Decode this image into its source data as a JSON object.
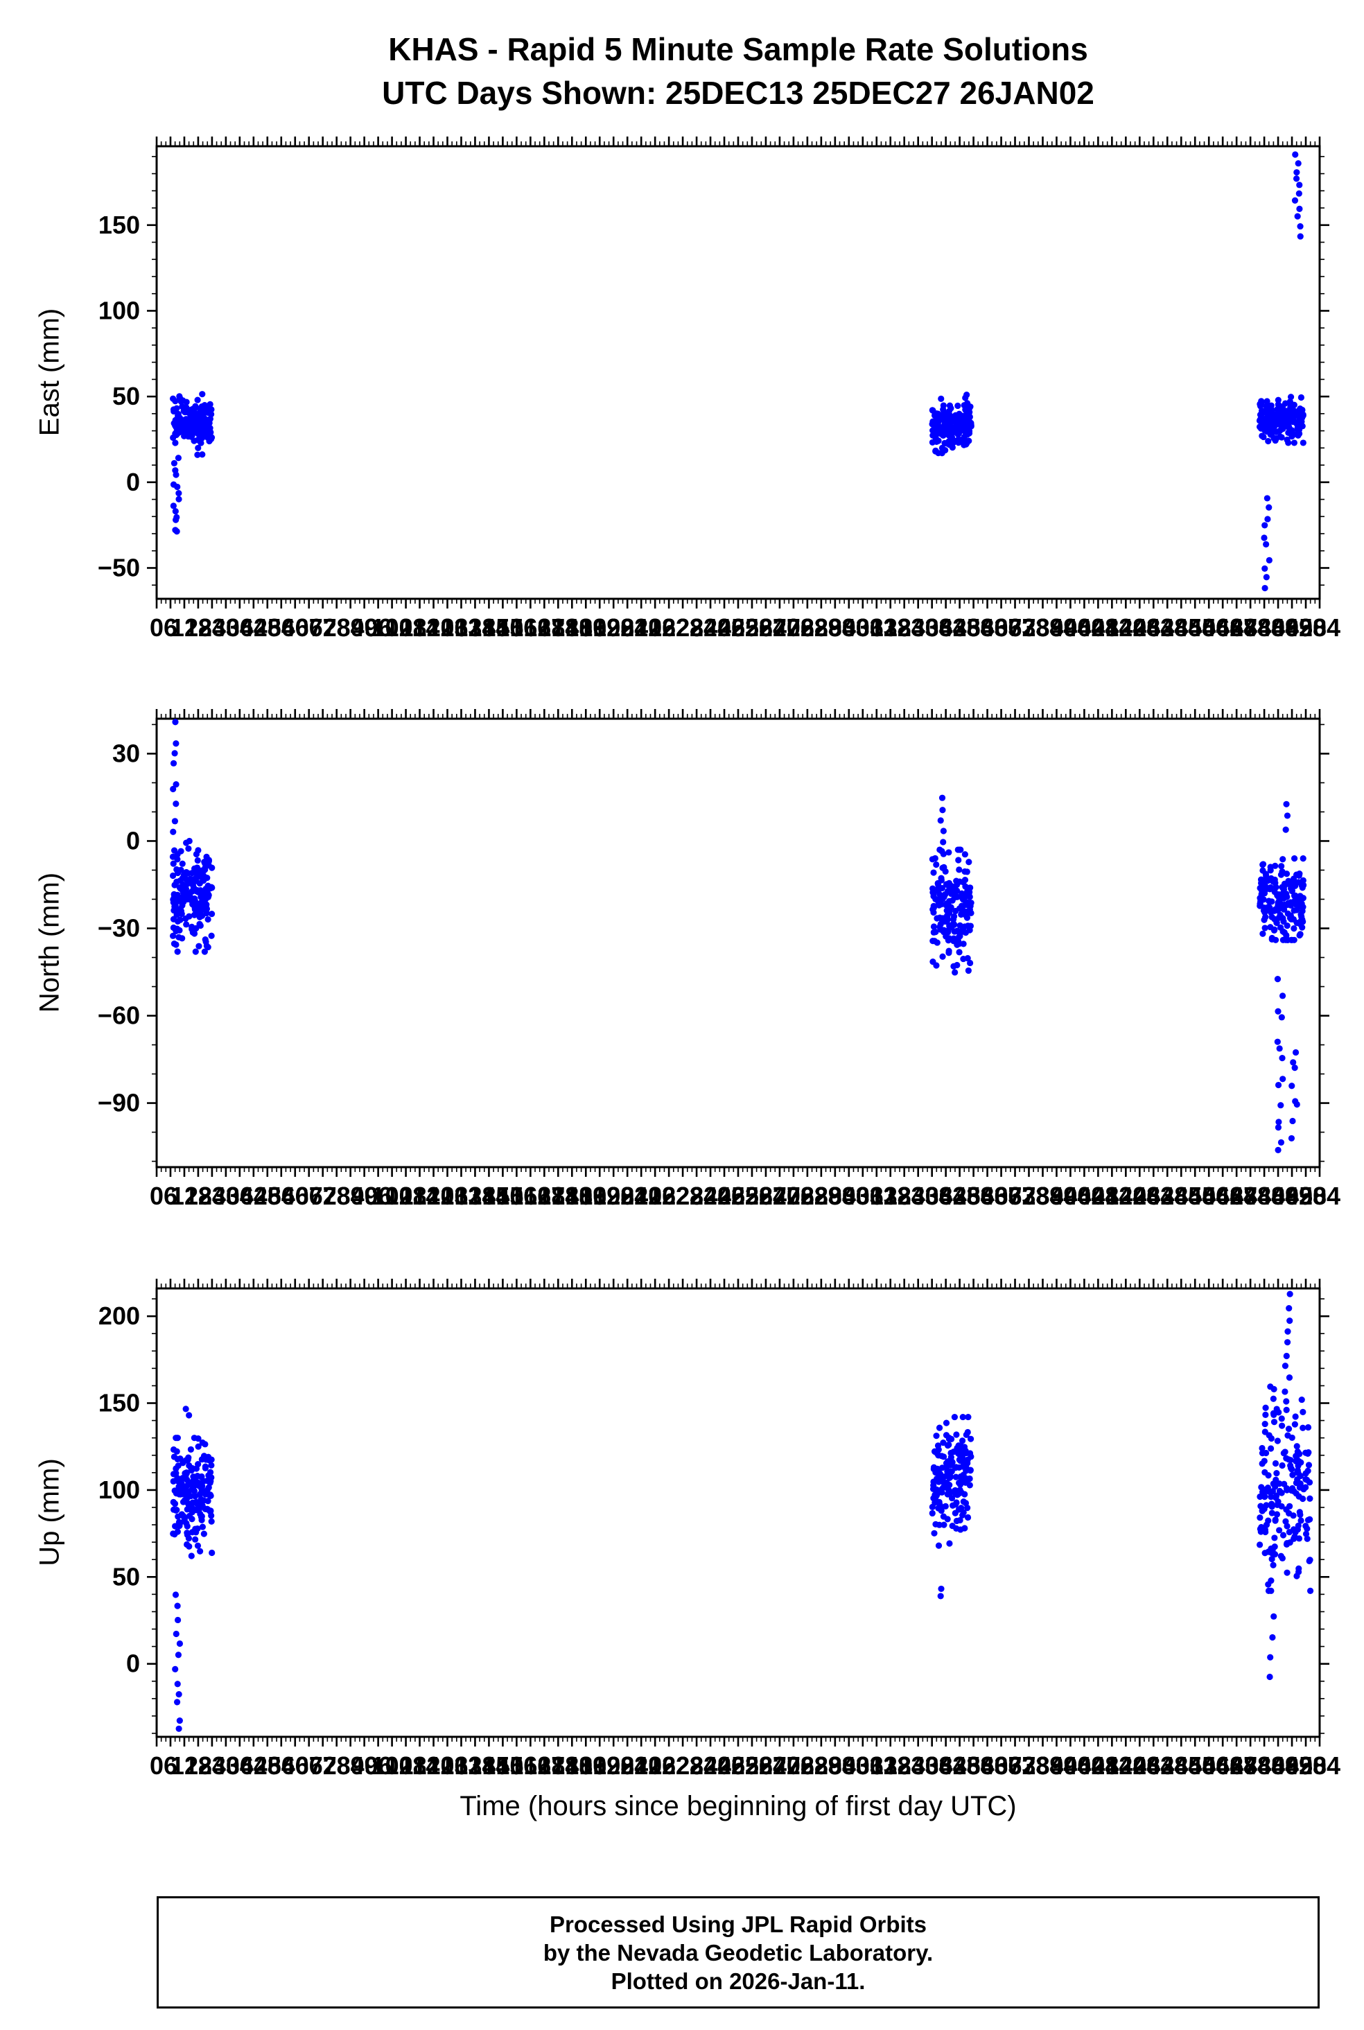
{
  "title": {
    "line1": "KHAS - Rapid 5 Minute Sample Rate Solutions",
    "line2": "UTC Days Shown:  25DEC13 25DEC27 26JAN02"
  },
  "xlabel": "Time (hours since beginning of first day UTC)",
  "footer": {
    "line1": "Processed Using JPL Rapid Orbits",
    "line2": "by the Nevada Geodetic Laboratory.",
    "line3": "Plotted on 2026-Jan-11."
  },
  "style": {
    "marker_color": "#0000ff",
    "frame_color": "#000000",
    "background": "#ffffff"
  },
  "chart_data": [
    {
      "type": "scatter",
      "name": "east",
      "ylabel": "East (mm)",
      "xlim": [
        0,
        504
      ],
      "ylim": [
        -68,
        196
      ],
      "yticks": [
        -50,
        0,
        50,
        100,
        150
      ],
      "ytick_minor_step": 10,
      "xtick_step": 6,
      "xtick_minor_step": 2,
      "seed": 11,
      "clusters": [
        {
          "x0": 7,
          "x1": 24,
          "n": 180,
          "mean": 34,
          "sd": 6,
          "ymin": 16,
          "ymax": 52
        },
        {
          "x0": 336,
          "x1": 353,
          "n": 180,
          "mean": 33,
          "sd": 7,
          "ymin": 17,
          "ymax": 51
        },
        {
          "x0": 478,
          "x1": 497,
          "n": 170,
          "mean": 36,
          "sd": 6,
          "ymin": 23,
          "ymax": 56
        }
      ],
      "columns": [
        {
          "x": 8.5,
          "n": 14,
          "y0": -30,
          "y1": 14
        },
        {
          "x": 481,
          "n": 10,
          "y0": -62,
          "y1": -8
        },
        {
          "x": 494.5,
          "n": 11,
          "y0": 145,
          "y1": 190
        }
      ]
    },
    {
      "type": "scatter",
      "name": "north",
      "ylabel": "North (mm)",
      "xlim": [
        0,
        504
      ],
      "ylim": [
        -112,
        42
      ],
      "yticks": [
        -90,
        -60,
        -30,
        0,
        30
      ],
      "ytick_minor_step": 10,
      "xtick_step": 6,
      "xtick_minor_step": 2,
      "seed": 22,
      "clusters": [
        {
          "x0": 7,
          "x1": 24,
          "n": 180,
          "mean": -19,
          "sd": 8,
          "ymin": -38,
          "ymax": 0
        },
        {
          "x0": 336,
          "x1": 353,
          "n": 180,
          "mean": -22,
          "sd": 9,
          "ymin": -46,
          "ymax": -3
        },
        {
          "x0": 478,
          "x1": 497,
          "n": 170,
          "mean": -20,
          "sd": 7,
          "ymin": -34,
          "ymax": -6
        }
      ],
      "columns": [
        {
          "x": 8,
          "n": 16,
          "y0": -28,
          "y1": 38
        },
        {
          "x": 340,
          "n": 5,
          "y0": 0,
          "y1": 14
        },
        {
          "x": 487,
          "n": 14,
          "y0": -108,
          "y1": -48
        },
        {
          "x": 493,
          "n": 8,
          "y0": -100,
          "y1": -72
        },
        {
          "x": 489,
          "n": 3,
          "y0": 4,
          "y1": 13
        }
      ]
    },
    {
      "type": "scatter",
      "name": "up",
      "ylabel": "Up (mm)",
      "xlim": [
        0,
        504
      ],
      "ylim": [
        -42,
        216
      ],
      "yticks": [
        0,
        50,
        100,
        150,
        200
      ],
      "ytick_minor_step": 10,
      "xtick_step": 6,
      "xtick_minor_step": 2,
      "seed": 33,
      "clusters": [
        {
          "x0": 7,
          "x1": 24,
          "n": 180,
          "mean": 97,
          "sd": 15,
          "ymin": 58,
          "ymax": 130
        },
        {
          "x0": 336,
          "x1": 353,
          "n": 180,
          "mean": 105,
          "sd": 16,
          "ymin": 68,
          "ymax": 142
        },
        {
          "x0": 478,
          "x1": 500,
          "n": 180,
          "mean": 100,
          "sd": 26,
          "ymin": 42,
          "ymax": 162
        }
      ],
      "columns": [
        {
          "x": 9,
          "n": 12,
          "y0": -38,
          "y1": 40
        },
        {
          "x": 13,
          "n": 2,
          "y0": 143,
          "y1": 146
        },
        {
          "x": 339,
          "n": 2,
          "y0": 38,
          "y1": 42
        },
        {
          "x": 490,
          "n": 10,
          "y0": 150,
          "y1": 212
        },
        {
          "x": 483,
          "n": 4,
          "y0": -8,
          "y1": 28
        }
      ]
    }
  ]
}
